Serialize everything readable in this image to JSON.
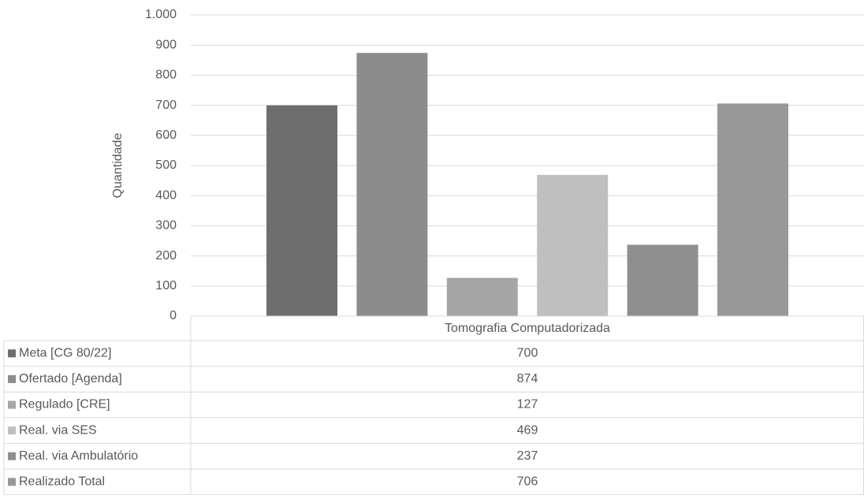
{
  "chart_data": {
    "type": "bar",
    "y_label": "Quantidade",
    "categories": [
      "Tomografia Computadorizada"
    ],
    "series": [
      {
        "name": "Meta [CG 80/22]",
        "color": "#6e6e6e",
        "values": [
          700
        ]
      },
      {
        "name": "Ofertado [Agenda]",
        "color": "#8c8c8c",
        "values": [
          874
        ]
      },
      {
        "name": "Regulado [CRE]",
        "color": "#a6a6a6",
        "values": [
          127
        ]
      },
      {
        "name": "Real. via SES",
        "color": "#bfbfbf",
        "values": [
          469
        ]
      },
      {
        "name": "Real. via Ambulatório",
        "color": "#8f8f8f",
        "values": [
          237
        ]
      },
      {
        "name": "Realizado Total",
        "color": "#989898",
        "values": [
          706
        ]
      }
    ],
    "ylim": [
      0,
      1000
    ],
    "yticks": [
      0,
      100,
      200,
      300,
      400,
      500,
      600,
      700,
      800,
      900,
      {
        "value": 1000,
        "label": "1.000"
      }
    ],
    "grid": true,
    "data_table": true
  }
}
